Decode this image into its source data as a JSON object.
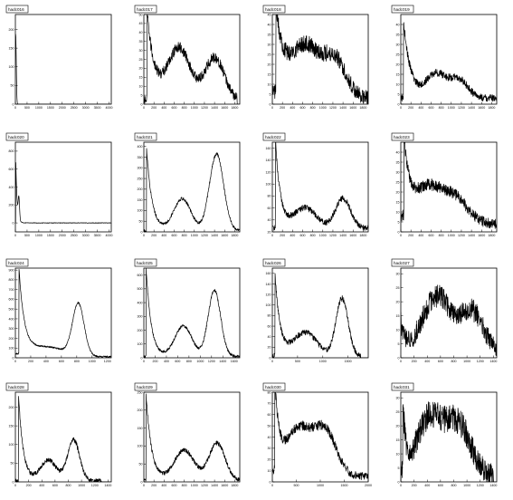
{
  "page": {
    "background": "#ffffff",
    "line_color": "#000000"
  },
  "chart_data": [
    {
      "type": "line",
      "title": "hadc016",
      "xlim": [
        0,
        4096
      ],
      "ylim": [
        0,
        240
      ],
      "xticks": [
        "0",
        "500",
        "1000",
        "1500",
        "2000",
        "2500",
        "3000",
        "3500",
        "4000"
      ],
      "yticks": [
        "0",
        "50",
        "100",
        "150",
        "200"
      ],
      "series": [
        {
          "shape": {
            "base": 0,
            "spikes": [
              [
                0,
                150,
                30
              ],
              [
                25,
                60,
                20
              ]
            ]
          }
        }
      ]
    },
    {
      "type": "line",
      "title": "hadc017",
      "xlim": [
        0,
        1900
      ],
      "ylim": [
        0,
        50
      ],
      "xticks": [
        "0",
        "200",
        "400",
        "600",
        "800",
        "1000",
        "1200",
        "1400",
        "1600",
        "1800"
      ],
      "yticks": [
        "0",
        "5",
        "10",
        "15",
        "20",
        "25",
        "30",
        "35",
        "40",
        "45",
        "50"
      ],
      "series": [
        {
          "shape": {
            "base": 2,
            "noise": 3.2,
            "decay": [
              60,
              50,
              150
            ],
            "peaks": [
              [
                700,
                29,
                220
              ],
              [
                1400,
                24,
                190
              ]
            ],
            "end": 1850
          }
        }
      ]
    },
    {
      "type": "line",
      "title": "hadc018",
      "xlim": [
        0,
        1900
      ],
      "ylim": [
        0,
        45
      ],
      "xticks": [
        "0",
        "200",
        "400",
        "600",
        "800",
        "1000",
        "1200",
        "1400",
        "1600",
        "1800"
      ],
      "yticks": [
        "0",
        "5",
        "10",
        "15",
        "20",
        "25",
        "30",
        "35",
        "40",
        "45"
      ],
      "series": [
        {
          "shape": {
            "base": 3,
            "noise": 4.5,
            "decay": [
              70,
              45,
              150
            ],
            "peaks": [
              [
                650,
                26,
                300
              ],
              [
                1250,
                18,
                220
              ]
            ],
            "end": 1900
          }
        }
      ]
    },
    {
      "type": "line",
      "title": "hadc019",
      "xlim": [
        0,
        1900
      ],
      "ylim": [
        0,
        45
      ],
      "xticks": [
        "0",
        "200",
        "400",
        "600",
        "800",
        "1000",
        "1200",
        "1400",
        "1600",
        "1800"
      ],
      "yticks": [
        "0",
        "5",
        "10",
        "15",
        "20",
        "25",
        "30",
        "35",
        "40"
      ],
      "series": [
        {
          "shape": {
            "base": 3,
            "noise": 2.2,
            "decay": [
              50,
              40,
              140
            ],
            "peaks": [
              [
                700,
                12,
                200
              ],
              [
                1150,
                9,
                180
              ]
            ],
            "end": 1900
          }
        }
      ]
    },
    {
      "type": "line",
      "title": "hadc020",
      "xlim": [
        0,
        4096
      ],
      "ylim": [
        -100,
        900
      ],
      "xticks": [
        "0",
        "500",
        "1000",
        "1500",
        "2000",
        "2500",
        "3000",
        "3500",
        "4000"
      ],
      "yticks": [
        "0",
        "200",
        "400",
        "600",
        "800"
      ],
      "series": [
        {
          "shape": {
            "base": 0,
            "noise": 4,
            "decay": [
              10,
              800,
              55
            ],
            "peaks": [
              [
                150,
                240,
                28
              ]
            ],
            "end": 4096
          }
        }
      ]
    },
    {
      "type": "line",
      "title": "hadc021",
      "xlim": [
        0,
        1900
      ],
      "ylim": [
        0,
        420
      ],
      "xticks": [
        "0",
        "200",
        "400",
        "600",
        "800",
        "1000",
        "1200",
        "1400",
        "1600",
        "1800"
      ],
      "yticks": [
        "0",
        "50",
        "100",
        "150",
        "200",
        "250",
        "300",
        "350",
        "400"
      ],
      "series": [
        {
          "shape": {
            "base": 5,
            "noise": 8,
            "decay": [
              50,
              400,
              110
            ],
            "peaks": [
              [
                760,
                150,
                170
              ],
              [
                1440,
                360,
                140
              ]
            ],
            "end": 1900
          }
        }
      ]
    },
    {
      "type": "line",
      "title": "hadc022",
      "xlim": [
        0,
        1900
      ],
      "ylim": [
        20,
        170
      ],
      "xticks": [
        "0",
        "200",
        "400",
        "600",
        "800",
        "1000",
        "1200",
        "1400",
        "1600",
        "1800"
      ],
      "yticks": [
        "20",
        "40",
        "60",
        "80",
        "100",
        "120",
        "140",
        "160"
      ],
      "series": [
        {
          "shape": {
            "base": 26,
            "noise": 5.5,
            "decay": [
              60,
              150,
              100
            ],
            "peaks": [
              [
                650,
                34,
                220
              ],
              [
                1400,
                50,
                150
              ]
            ],
            "end": 1900
          }
        }
      ]
    },
    {
      "type": "line",
      "title": "hadc023",
      "xlim": [
        0,
        1900
      ],
      "ylim": [
        0,
        45
      ],
      "xticks": [
        "0",
        "200",
        "400",
        "600",
        "800",
        "1000",
        "1200",
        "1400",
        "1600",
        "1800"
      ],
      "yticks": [
        "0",
        "5",
        "10",
        "15",
        "20",
        "25",
        "30",
        "35",
        "40"
      ],
      "series": [
        {
          "shape": {
            "base": 4,
            "noise": 3.2,
            "decay": [
              60,
              40,
              120
            ],
            "peaks": [
              [
                550,
                18,
                300
              ],
              [
                1100,
                11,
                250
              ]
            ],
            "end": 1900
          }
        }
      ]
    },
    {
      "type": "line",
      "title": "hadc024",
      "xlim": [
        0,
        1250
      ],
      "ylim": [
        0,
        920
      ],
      "xticks": [
        "0",
        "200",
        "400",
        "600",
        "800",
        "1000",
        "1200"
      ],
      "yticks": [
        "0",
        "100",
        "200",
        "300",
        "400",
        "500",
        "600",
        "700",
        "800",
        "900"
      ],
      "series": [
        {
          "shape": {
            "base": 10,
            "noise": 10,
            "decay": [
              45,
              900,
              70
            ],
            "peaks": [
              [
                400,
                100,
                250
              ],
              [
                820,
                530,
                75
              ]
            ],
            "end": 1250
          }
        }
      ]
    },
    {
      "type": "line",
      "title": "hadc025",
      "xlim": [
        0,
        1700
      ],
      "ylim": [
        0,
        650
      ],
      "xticks": [
        "0",
        "200",
        "400",
        "600",
        "800",
        "1000",
        "1200",
        "1400",
        "1600"
      ],
      "yticks": [
        "0",
        "100",
        "200",
        "300",
        "400",
        "500",
        "600"
      ],
      "series": [
        {
          "shape": {
            "base": 10,
            "noise": 12,
            "decay": [
              40,
              640,
              90
            ],
            "peaks": [
              [
                700,
                220,
                150
              ],
              [
                1250,
                480,
                110
              ]
            ],
            "end": 1700
          }
        }
      ]
    },
    {
      "type": "line",
      "title": "hadc026",
      "xlim": [
        0,
        1900
      ],
      "ylim": [
        0,
        170
      ],
      "xticks": [
        "0",
        "500",
        "1000",
        "1500"
      ],
      "yticks": [
        "0",
        "20",
        "40",
        "60",
        "80",
        "100",
        "120",
        "140",
        "160"
      ],
      "series": [
        {
          "shape": {
            "base": 3,
            "noise": 6,
            "decay": [
              50,
              160,
              100
            ],
            "peaks": [
              [
                650,
                45,
                230
              ],
              [
                1380,
                110,
                120
              ]
            ],
            "end": 1750
          }
        }
      ]
    },
    {
      "type": "line",
      "title": "hadc027",
      "xlim": [
        0,
        1450
      ],
      "ylim": [
        0,
        32
      ],
      "xticks": [
        "0",
        "200",
        "400",
        "600",
        "800",
        "1000",
        "1200",
        "1400"
      ],
      "yticks": [
        "0",
        "5",
        "10",
        "15",
        "20",
        "25",
        "30"
      ],
      "series": [
        {
          "shape": {
            "base": 2,
            "noise": 4.2,
            "decay": [
              0,
              10,
              60
            ],
            "peaks": [
              [
                550,
                20,
                220
              ],
              [
                1080,
                14,
                170
              ]
            ],
            "end": 1450
          }
        }
      ]
    },
    {
      "type": "line",
      "title": "hadc028",
      "xlim": [
        0,
        1450
      ],
      "ylim": [
        0,
        240
      ],
      "xticks": [
        "0",
        "200",
        "400",
        "600",
        "800",
        "1000",
        "1200",
        "1400"
      ],
      "yticks": [
        "0",
        "50",
        "100",
        "150",
        "200"
      ],
      "series": [
        {
          "shape": {
            "base": 3,
            "noise": 7,
            "decay": [
              45,
              240,
              70
            ],
            "peaks": [
              [
                500,
                55,
                120
              ],
              [
                880,
                110,
                90
              ]
            ],
            "end": 1300
          }
        }
      ]
    },
    {
      "type": "line",
      "title": "hadc029",
      "xlim": [
        0,
        1900
      ],
      "ylim": [
        0,
        250
      ],
      "xticks": [
        "0",
        "200",
        "400",
        "600",
        "800",
        "1000",
        "1200",
        "1400",
        "1600",
        "1800"
      ],
      "yticks": [
        "0",
        "50",
        "100",
        "150",
        "200",
        "250"
      ],
      "series": [
        {
          "shape": {
            "base": 3,
            "noise": 7,
            "decay": [
              45,
              240,
              110
            ],
            "peaks": [
              [
                800,
                85,
                200
              ],
              [
                1450,
                105,
                160
              ]
            ],
            "end": 1900
          }
        }
      ]
    },
    {
      "type": "line",
      "title": "hadc030",
      "xlim": [
        0,
        2000
      ],
      "ylim": [
        0,
        80
      ],
      "xticks": [
        "0",
        "500",
        "1000",
        "1500",
        "2000"
      ],
      "yticks": [
        "0",
        "10",
        "20",
        "30",
        "40",
        "50",
        "60",
        "70",
        "80"
      ],
      "series": [
        {
          "shape": {
            "base": 5,
            "noise": 4.5,
            "decay": [
              50,
              80,
              100
            ],
            "peaks": [
              [
                550,
                42,
                260
              ],
              [
                1100,
                40,
                230
              ]
            ],
            "end": 2000
          }
        }
      ]
    },
    {
      "type": "line",
      "title": "hadc031",
      "xlim": [
        0,
        1450
      ],
      "ylim": [
        0,
        32
      ],
      "xticks": [
        "0",
        "200",
        "400",
        "600",
        "800",
        "1000",
        "1200",
        "1400"
      ],
      "yticks": [
        "0",
        "5",
        "10",
        "15",
        "20",
        "25",
        "30"
      ],
      "series": [
        {
          "shape": {
            "base": 2,
            "noise": 5,
            "decay": [
              30,
              25,
              50
            ],
            "peaks": [
              [
                420,
                20,
                180
              ],
              [
                850,
                19,
                200
              ]
            ],
            "end": 1400
          }
        }
      ]
    }
  ]
}
